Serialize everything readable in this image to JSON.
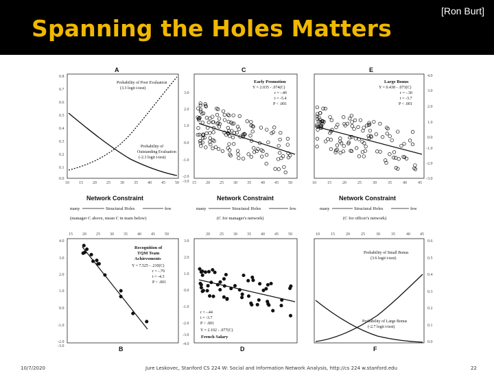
{
  "slide": {
    "title": "Spanning the Holes Matters",
    "credit": "[Ron Burt]",
    "date": "10/7/2020",
    "footer": "Jure Leskovec, Stanford CS 224 W: Social and Information Network Analysis, http://cs 224 w.stanford.edu",
    "page": "22"
  },
  "figure": {
    "panels": {
      "A": {
        "label": "A",
        "top_annotation": "Probability of Poor Evaluation",
        "top_annotation_sub": "(3.3 logit t-test)",
        "mid_annotation_1": "Probability of",
        "mid_annotation_2": "Outstanding Evaluation",
        "mid_annotation_3": "(-2.3 logit t-test)",
        "left_ticks": [
          "0.8",
          "0.7",
          "0.6",
          "0.5",
          "0.4",
          "0.3",
          "0.2",
          "0.1",
          "0.0"
        ],
        "bottom_ticks": [
          "10",
          "15",
          "20",
          "25",
          "30",
          "35",
          "40",
          "45",
          "50"
        ]
      },
      "C": {
        "label": "C",
        "title": "Early Promotion",
        "eq1": "Y = 2.035 - .074(C)",
        "eq2": "r = -.40",
        "eq3": "t = -5.4",
        "eq4": "P < .001",
        "left_ticks": [
          "3.0",
          "2.0",
          "1.0",
          "0.0",
          "-1.0",
          "-2.0",
          "-3.0"
        ],
        "bottom_ticks": [
          "15",
          "20",
          "25",
          "30",
          "35",
          "40",
          "45",
          "50"
        ]
      },
      "E": {
        "label": "E",
        "title": "Large Bonus",
        "eq1": "Y = 0.438 - .073(C)",
        "eq2": "r = -.30",
        "eq3": "t = -3.7",
        "eq4": "P < .001",
        "right_ticks": [
          "4.0",
          "3.0",
          "2.0",
          "1.0",
          "0.0",
          "-1.0",
          "-2.0",
          "-3.0"
        ],
        "bottom_ticks": [
          "10",
          "15",
          "20",
          "25",
          "30",
          "35",
          "40",
          "45"
        ]
      },
      "B": {
        "label": "B",
        "title1": "Recognition of",
        "title2": "TQM Team",
        "title3": "Achievements",
        "eq1": "Y = 7.525 - .210(C)",
        "eq2": "r = -.79",
        "eq3": "t = -4.3",
        "eq4": "P < .001",
        "left_ticks": [
          "4.0",
          "3.0",
          "2.0",
          "1.0",
          "0.0",
          "-1.0",
          "-2.0",
          "-3.0"
        ],
        "top_ticks": [
          "15",
          "20",
          "25",
          "30",
          "35",
          "40",
          "45",
          "50"
        ]
      },
      "D": {
        "label": "D",
        "eq1": "r = -.44",
        "eq2": "t = -3.7",
        "eq3": "P < .001",
        "eq4": "Y = 2.102 - .077(C)",
        "sub": "French Salary",
        "left_ticks": [
          "3.0",
          "2.0",
          "1.0",
          "0.0",
          "-1.0",
          "-2.0",
          "-3.0",
          "-4.0"
        ],
        "top_ticks": [
          "20",
          "25",
          "30",
          "35",
          "40",
          "45",
          "50"
        ]
      },
      "F": {
        "label": "F",
        "top_annotation": "Probability of Small Bonus",
        "top_annotation_sub": "(3.6 logit t-test)",
        "bottom_annotation": "Probability of Large Bonus",
        "bottom_annotation_sub": "(-2.7 logit t-test)",
        "right_ticks": [
          "0.6",
          "0.5",
          "0.4",
          "0.3",
          "0.2",
          "0.1",
          "0.0"
        ],
        "top_ticks": [
          "10",
          "15",
          "20",
          "25",
          "30",
          "35",
          "40",
          "45"
        ]
      }
    },
    "constraint_labels": {
      "axis_title": "Network Constraint",
      "many": "many",
      "holes": "Structural Holes",
      "few": "few",
      "note_a": "(manager C above, mean C in team below)",
      "note_c": "(C for manager's network)",
      "note_e": "(C for officer's network)"
    }
  }
}
